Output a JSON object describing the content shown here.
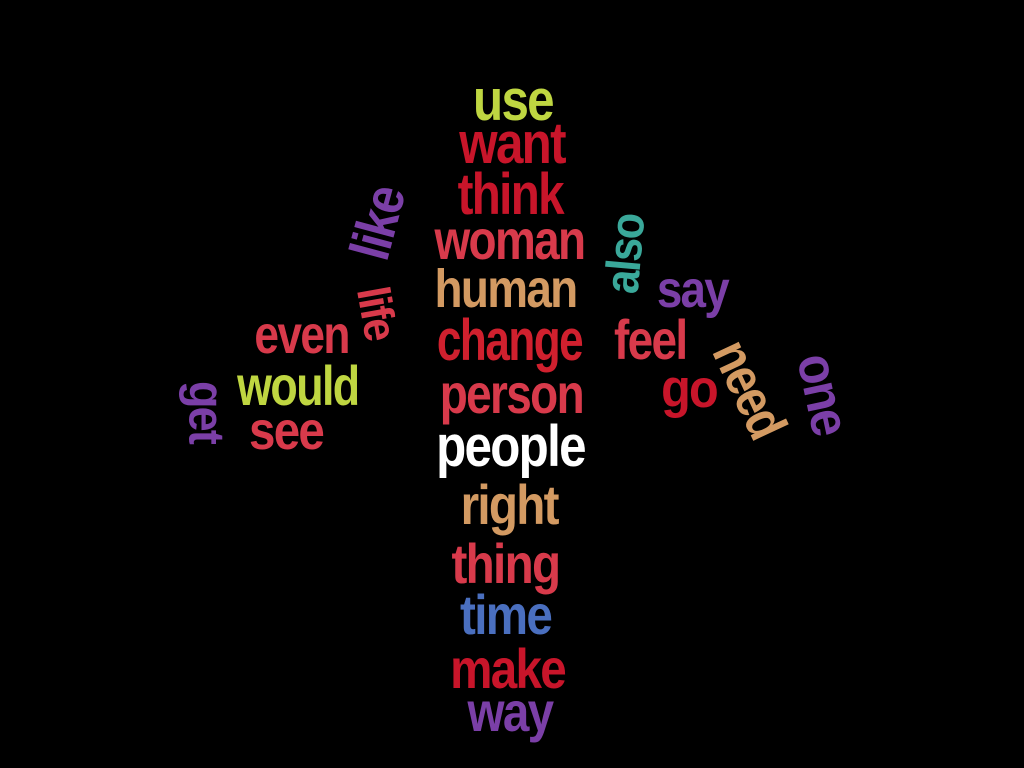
{
  "words": [
    {
      "text": "use",
      "color": "#bfd641"
    },
    {
      "text": "want",
      "color": "#c8152a"
    },
    {
      "text": "think",
      "color": "#c8152a"
    },
    {
      "text": "like",
      "color": "#7b3fa7"
    },
    {
      "text": "woman",
      "color": "#d83a4b"
    },
    {
      "text": "also",
      "color": "#3aa89a"
    },
    {
      "text": "human",
      "color": "#d39a62"
    },
    {
      "text": "say",
      "color": "#7b3fa7"
    },
    {
      "text": "life",
      "color": "#d83a4b"
    },
    {
      "text": "even",
      "color": "#d83a4b"
    },
    {
      "text": "change",
      "color": "#d0202e"
    },
    {
      "text": "feel",
      "color": "#d83a4b"
    },
    {
      "text": "need",
      "color": "#d39a62"
    },
    {
      "text": "one",
      "color": "#7b3fa7"
    },
    {
      "text": "would",
      "color": "#bfd641"
    },
    {
      "text": "get",
      "color": "#7b3fa7"
    },
    {
      "text": "person",
      "color": "#d83a4b"
    },
    {
      "text": "go",
      "color": "#c8152a"
    },
    {
      "text": "see",
      "color": "#d83a4b"
    },
    {
      "text": "people",
      "color": "#ffffff"
    },
    {
      "text": "right",
      "color": "#d39a62"
    },
    {
      "text": "thing",
      "color": "#d83a4b"
    },
    {
      "text": "time",
      "color": "#4a6fbf"
    },
    {
      "text": "make",
      "color": "#c8152a"
    },
    {
      "text": "way",
      "color": "#7b3fa7"
    }
  ]
}
